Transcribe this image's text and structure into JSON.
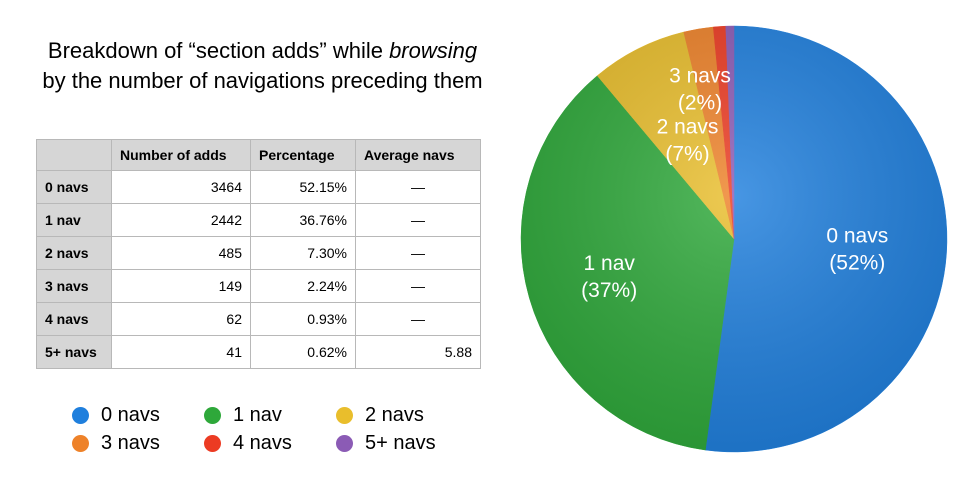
{
  "title": {
    "line1_before": "Breakdown of “section adds” while ",
    "line1_emph": "browsing",
    "line2": "by the number of navigations preceding them"
  },
  "table": {
    "headers": [
      "",
      "Number of adds",
      "Percentage",
      "Average navs"
    ],
    "rows": [
      {
        "label": "0 navs",
        "adds": "3464",
        "percentage": "52.15%",
        "average": "—"
      },
      {
        "label": "1 nav",
        "adds": "2442",
        "percentage": "36.76%",
        "average": "—"
      },
      {
        "label": "2 navs",
        "adds": "485",
        "percentage": "7.30%",
        "average": "—"
      },
      {
        "label": "3 navs",
        "adds": "149",
        "percentage": "2.24%",
        "average": "—"
      },
      {
        "label": "4 navs",
        "adds": "62",
        "percentage": "0.93%",
        "average": "—"
      },
      {
        "label": "5+ navs",
        "adds": "41",
        "percentage": "0.62%",
        "average": "5.88"
      }
    ]
  },
  "chart_data": {
    "type": "pie",
    "title": "Breakdown of “section adds” while browsing by the number of navigations preceding them",
    "legend_placement": "bottom-left",
    "slices": [
      {
        "name": "0 navs",
        "value": 3464,
        "percent": 52.15,
        "color": "#1f7fdd",
        "label_line1": "0 navs",
        "label_line2": "(52%)"
      },
      {
        "name": "1 nav",
        "value": 2442,
        "percent": 36.76,
        "color": "#2ea83a",
        "label_line1": "1 nav",
        "label_line2": "(37%)"
      },
      {
        "name": "2 navs",
        "value": 485,
        "percent": 7.3,
        "color": "#e9be2c",
        "label_line1": "2 navs",
        "label_line2": "(7%)"
      },
      {
        "name": "3 navs",
        "value": 149,
        "percent": 2.24,
        "color": "#ee8229",
        "label_line1": "3 navs",
        "label_line2": "(2%)"
      },
      {
        "name": "4 navs",
        "value": 62,
        "percent": 0.93,
        "color": "#ec3b23",
        "label_line1": "",
        "label_line2": ""
      },
      {
        "name": "5+ navs",
        "value": 41,
        "percent": 0.62,
        "color": "#8b5bb5",
        "label_line1": "",
        "label_line2": ""
      }
    ]
  }
}
